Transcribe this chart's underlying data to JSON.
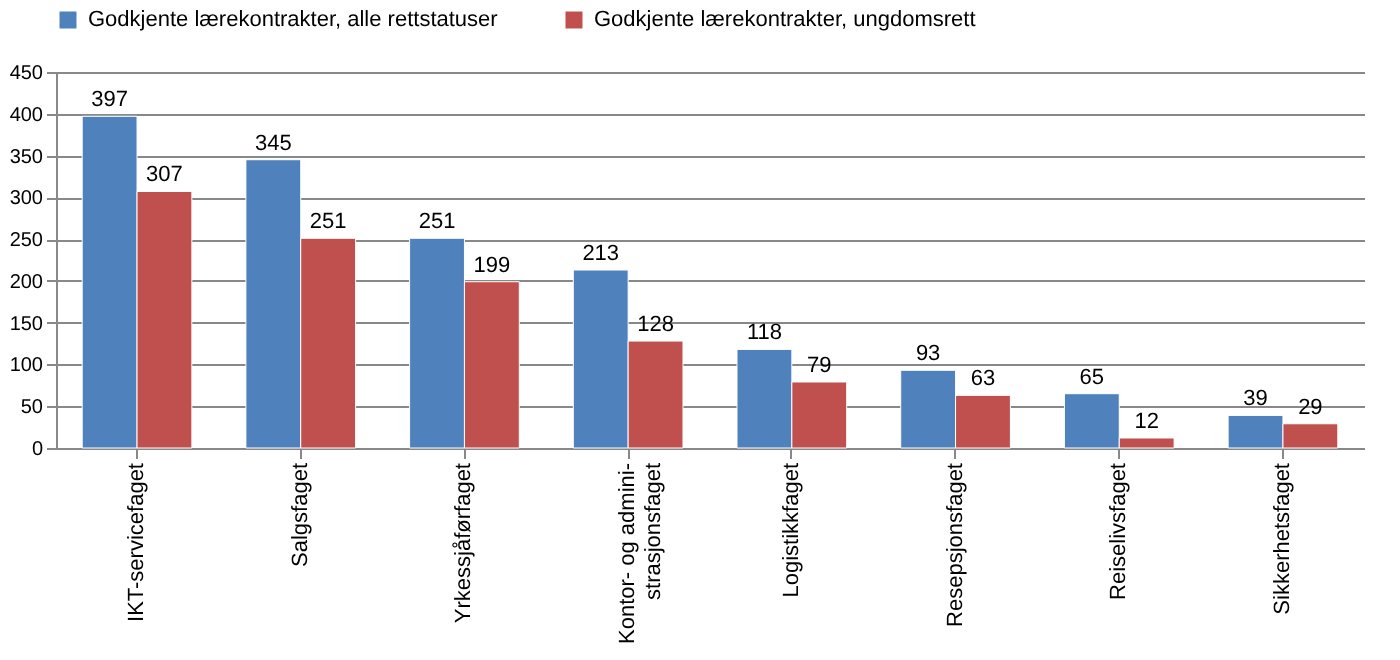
{
  "chart_data": {
    "type": "bar",
    "categories": [
      "IKT-servicefaget",
      "Salgsfaget",
      "Yrkessjåførfaget",
      "Kontor- og admini-\nstrasjonsfaget",
      "Logistikkfaget",
      "Resepsjonsfaget",
      "Reiselivsfaget",
      "Sikkerhetsfaget"
    ],
    "series": [
      {
        "name": "Godkjente lærekontrakter, alle rettstatuser",
        "color": "#4f81bd",
        "values": [
          397,
          345,
          251,
          213,
          118,
          93,
          65,
          39
        ]
      },
      {
        "name": "Godkjente lærekontrakter, ungdomsrett",
        "color": "#c0504d",
        "values": [
          307,
          251,
          199,
          128,
          79,
          63,
          12,
          29
        ]
      }
    ],
    "ylim": [
      0,
      450
    ],
    "yticks": [
      0,
      50,
      100,
      150,
      200,
      250,
      300,
      350,
      400,
      450
    ],
    "grid": "y",
    "legend": "top",
    "data_labels": true
  }
}
